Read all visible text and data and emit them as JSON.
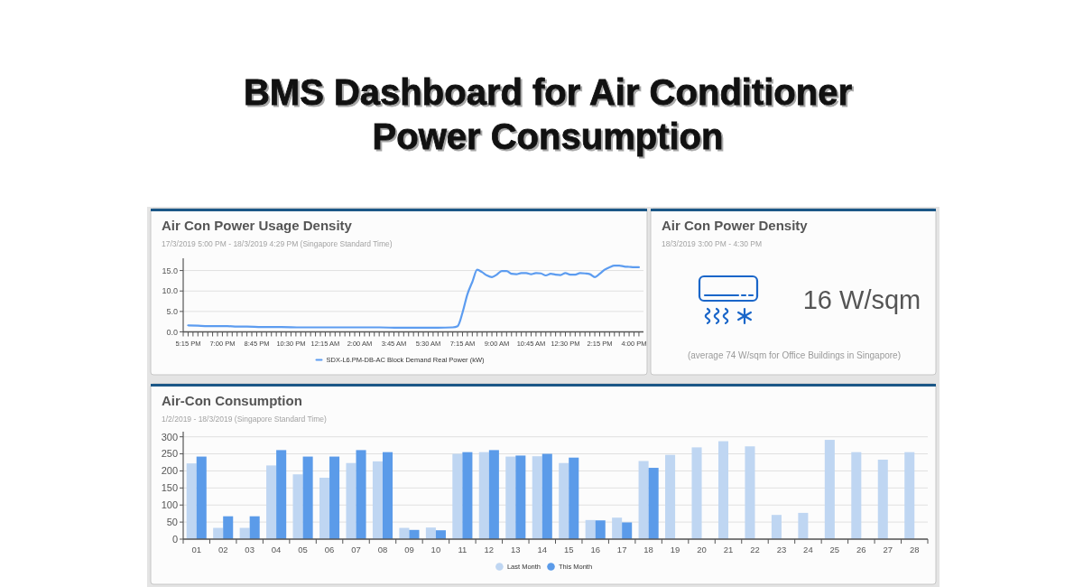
{
  "chart_data": [
    {
      "type": "other",
      "title": "BMS Dashboard for Air Conditioner Power Consumption"
    },
    {
      "type": "line",
      "title": "Air Con Power Usage Density",
      "subtitle": "17/3/2019 5:00 PM - 18/3/2019 4:29 PM (Singapore Standard Time)",
      "x": [
        "2019-03-17T17:15",
        "2019-03-17T17:45",
        "2019-03-17T18:15",
        "2019-03-17T18:45",
        "2019-03-17T19:15",
        "2019-03-17T19:45",
        "2019-03-17T20:15",
        "2019-03-17T21:00",
        "2019-03-17T22:00",
        "2019-03-17T23:00",
        "2019-03-18T00:00",
        "2019-03-18T01:00",
        "2019-03-18T02:00",
        "2019-03-18T03:00",
        "2019-03-18T04:00",
        "2019-03-18T05:00",
        "2019-03-18T06:00",
        "2019-03-18T06:45",
        "2019-03-18T07:00",
        "2019-03-18T07:15",
        "2019-03-18T07:30",
        "2019-03-18T07:45",
        "2019-03-18T08:00",
        "2019-03-18T08:15",
        "2019-03-18T08:30",
        "2019-03-18T08:45",
        "2019-03-18T09:00",
        "2019-03-18T09:15",
        "2019-03-18T09:30",
        "2019-03-18T09:45",
        "2019-03-18T10:00",
        "2019-03-18T10:15",
        "2019-03-18T10:30",
        "2019-03-18T10:45",
        "2019-03-18T11:00",
        "2019-03-18T11:15",
        "2019-03-18T11:30",
        "2019-03-18T11:45",
        "2019-03-18T12:00",
        "2019-03-18T12:15",
        "2019-03-18T12:30",
        "2019-03-18T12:45",
        "2019-03-18T13:00",
        "2019-03-18T13:15",
        "2019-03-18T13:30",
        "2019-03-18T13:45",
        "2019-03-18T14:00",
        "2019-03-18T14:15",
        "2019-03-18T14:30",
        "2019-03-18T14:45",
        "2019-03-18T15:00",
        "2019-03-18T15:15",
        "2019-03-18T15:30",
        "2019-03-18T15:45",
        "2019-03-18T16:00",
        "2019-03-18T16:15"
      ],
      "series": [
        {
          "name": "SDX-L6.PM-DB-AC Block Demand Real Power (kW)",
          "color": "#5c9cf0",
          "values": [
            1.6,
            1.5,
            1.4,
            1.4,
            1.4,
            1.3,
            1.3,
            1.2,
            1.2,
            1.1,
            1.1,
            1.1,
            1.1,
            1.1,
            1.0,
            1.0,
            1.0,
            1.1,
            1.4,
            4.7,
            9.2,
            12.2,
            15.2,
            14.6,
            13.8,
            13.4,
            14.0,
            14.9,
            14.9,
            14.2,
            14.1,
            14.4,
            14.4,
            14.1,
            14.4,
            14.3,
            13.8,
            14.2,
            14.0,
            13.9,
            14.4,
            14.0,
            14.0,
            14.4,
            14.3,
            14.1,
            13.4,
            14.2,
            15.2,
            15.8,
            16.2,
            16.2,
            16.0,
            15.9,
            15.8,
            15.8
          ]
        }
      ],
      "xlim": [
        "2019-03-17T17:00",
        "2019-03-18T16:29"
      ],
      "xticks": [
        {
          "value": "2019-03-17T17:00",
          "label": null
        },
        {
          "value": "2019-03-17T17:15",
          "label": "5:15 PM"
        },
        {
          "value": "2019-03-17T17:30",
          "label": null
        },
        {
          "value": "2019-03-17T17:45",
          "label": null
        },
        {
          "value": "2019-03-17T18:00",
          "label": null
        },
        {
          "value": "2019-03-17T18:15",
          "label": null
        },
        {
          "value": "2019-03-17T18:30",
          "label": null
        },
        {
          "value": "2019-03-17T18:45",
          "label": null
        },
        {
          "value": "2019-03-17T19:00",
          "label": "7:00 PM"
        },
        {
          "value": "2019-03-17T19:15",
          "label": null
        },
        {
          "value": "2019-03-17T19:30",
          "label": null
        },
        {
          "value": "2019-03-17T19:45",
          "label": null
        },
        {
          "value": "2019-03-17T20:00",
          "label": null
        },
        {
          "value": "2019-03-17T20:15",
          "label": null
        },
        {
          "value": "2019-03-17T20:30",
          "label": null
        },
        {
          "value": "2019-03-17T20:45",
          "label": "8:45 PM"
        },
        {
          "value": "2019-03-17T21:00",
          "label": null
        },
        {
          "value": "2019-03-17T21:15",
          "label": null
        },
        {
          "value": "2019-03-17T21:30",
          "label": null
        },
        {
          "value": "2019-03-17T21:45",
          "label": null
        },
        {
          "value": "2019-03-17T22:00",
          "label": null
        },
        {
          "value": "2019-03-17T22:15",
          "label": null
        },
        {
          "value": "2019-03-17T22:30",
          "label": "10:30 PM"
        },
        {
          "value": "2019-03-17T22:45",
          "label": null
        },
        {
          "value": "2019-03-17T23:00",
          "label": null
        },
        {
          "value": "2019-03-17T23:15",
          "label": null
        },
        {
          "value": "2019-03-17T23:30",
          "label": null
        },
        {
          "value": "2019-03-17T23:45",
          "label": null
        },
        {
          "value": "2019-03-18T00:00",
          "label": null
        },
        {
          "value": "2019-03-18T00:15",
          "label": "12:15 AM"
        },
        {
          "value": "2019-03-18T00:30",
          "label": null
        },
        {
          "value": "2019-03-18T00:45",
          "label": null
        },
        {
          "value": "2019-03-18T01:00",
          "label": null
        },
        {
          "value": "2019-03-18T01:15",
          "label": null
        },
        {
          "value": "2019-03-18T01:30",
          "label": null
        },
        {
          "value": "2019-03-18T01:45",
          "label": null
        },
        {
          "value": "2019-03-18T02:00",
          "label": "2:00 AM"
        },
        {
          "value": "2019-03-18T02:15",
          "label": null
        },
        {
          "value": "2019-03-18T02:30",
          "label": null
        },
        {
          "value": "2019-03-18T02:45",
          "label": null
        },
        {
          "value": "2019-03-18T03:00",
          "label": null
        },
        {
          "value": "2019-03-18T03:15",
          "label": null
        },
        {
          "value": "2019-03-18T03:30",
          "label": null
        },
        {
          "value": "2019-03-18T03:45",
          "label": "3:45 AM"
        },
        {
          "value": "2019-03-18T04:00",
          "label": null
        },
        {
          "value": "2019-03-18T04:15",
          "label": null
        },
        {
          "value": "2019-03-18T04:30",
          "label": null
        },
        {
          "value": "2019-03-18T04:45",
          "label": null
        },
        {
          "value": "2019-03-18T05:00",
          "label": null
        },
        {
          "value": "2019-03-18T05:15",
          "label": null
        },
        {
          "value": "2019-03-18T05:30",
          "label": "5:30 AM"
        },
        {
          "value": "2019-03-18T05:45",
          "label": null
        },
        {
          "value": "2019-03-18T06:00",
          "label": null
        },
        {
          "value": "2019-03-18T06:15",
          "label": null
        },
        {
          "value": "2019-03-18T06:30",
          "label": null
        },
        {
          "value": "2019-03-18T06:45",
          "label": null
        },
        {
          "value": "2019-03-18T07:00",
          "label": null
        },
        {
          "value": "2019-03-18T07:15",
          "label": "7:15 AM"
        },
        {
          "value": "2019-03-18T07:30",
          "label": null
        },
        {
          "value": "2019-03-18T07:45",
          "label": null
        },
        {
          "value": "2019-03-18T08:00",
          "label": null
        },
        {
          "value": "2019-03-18T08:15",
          "label": null
        },
        {
          "value": "2019-03-18T08:30",
          "label": null
        },
        {
          "value": "2019-03-18T08:45",
          "label": null
        },
        {
          "value": "2019-03-18T09:00",
          "label": "9:00 AM"
        },
        {
          "value": "2019-03-18T09:15",
          "label": null
        },
        {
          "value": "2019-03-18T09:30",
          "label": null
        },
        {
          "value": "2019-03-18T09:45",
          "label": null
        },
        {
          "value": "2019-03-18T10:00",
          "label": null
        },
        {
          "value": "2019-03-18T10:15",
          "label": null
        },
        {
          "value": "2019-03-18T10:30",
          "label": null
        },
        {
          "value": "2019-03-18T10:45",
          "label": "10:45 AM"
        },
        {
          "value": "2019-03-18T11:00",
          "label": null
        },
        {
          "value": "2019-03-18T11:15",
          "label": null
        },
        {
          "value": "2019-03-18T11:30",
          "label": null
        },
        {
          "value": "2019-03-18T11:45",
          "label": null
        },
        {
          "value": "2019-03-18T12:00",
          "label": null
        },
        {
          "value": "2019-03-18T12:15",
          "label": null
        },
        {
          "value": "2019-03-18T12:30",
          "label": "12:30 PM"
        },
        {
          "value": "2019-03-18T12:45",
          "label": null
        },
        {
          "value": "2019-03-18T13:00",
          "label": null
        },
        {
          "value": "2019-03-18T13:15",
          "label": null
        },
        {
          "value": "2019-03-18T13:30",
          "label": null
        },
        {
          "value": "2019-03-18T13:45",
          "label": null
        },
        {
          "value": "2019-03-18T14:00",
          "label": null
        },
        {
          "value": "2019-03-18T14:15",
          "label": "2:15 PM"
        },
        {
          "value": "2019-03-18T14:30",
          "label": null
        },
        {
          "value": "2019-03-18T14:45",
          "label": null
        },
        {
          "value": "2019-03-18T15:00",
          "label": null
        },
        {
          "value": "2019-03-18T15:15",
          "label": null
        },
        {
          "value": "2019-03-18T15:30",
          "label": null
        },
        {
          "value": "2019-03-18T15:45",
          "label": null
        },
        {
          "value": "2019-03-18T16:00",
          "label": "4:00 PM"
        },
        {
          "value": "2019-03-18T16:15",
          "label": null
        }
      ],
      "ylim": [
        0,
        18
      ],
      "yticks": [
        {
          "value": 0,
          "label": "0.0"
        },
        {
          "value": 5,
          "label": "5.0"
        },
        {
          "value": 10,
          "label": "10.0"
        },
        {
          "value": 15,
          "label": "15.0"
        }
      ],
      "grid": "y",
      "legend": "bottom"
    },
    {
      "type": "other",
      "title": "Air Con Power Density",
      "subtitle": "18/3/2019 3:00 PM - 4:30 PM",
      "annotations": [
        "16 W/sqm",
        "(average 74 W/sqm for Office Buildings in Singapore)"
      ]
    },
    {
      "type": "bar",
      "title": "Air-Con Consumption",
      "subtitle": "1/2/2019 - 18/3/2019 (Singapore Standard Time)",
      "categories": [
        "01",
        "02",
        "03",
        "04",
        "05",
        "06",
        "07",
        "08",
        "09",
        "10",
        "11",
        "12",
        "13",
        "14",
        "15",
        "16",
        "17",
        "18",
        "19",
        "20",
        "21",
        "22",
        "23",
        "24",
        "25",
        "26",
        "27",
        "28"
      ],
      "series": [
        {
          "name": "Last Month",
          "color": "#bfd6f2",
          "values": [
            222,
            33,
            33,
            216,
            190,
            180,
            223,
            228,
            33,
            34,
            250,
            255,
            242,
            243,
            223,
            56,
            63,
            229,
            247,
            269,
            287,
            272,
            71,
            77,
            291,
            255,
            233,
            255
          ]
        },
        {
          "name": "This Month",
          "color": "#5b9be9",
          "values": [
            242,
            67,
            67,
            261,
            242,
            242,
            261,
            255,
            27,
            26,
            255,
            261,
            245,
            250,
            239,
            55,
            49,
            209,
            null,
            null,
            null,
            null,
            null,
            null,
            null,
            null,
            null,
            null
          ]
        }
      ],
      "ylim": [
        0,
        315
      ],
      "yticks": [
        0,
        50,
        100,
        150,
        200,
        250,
        300
      ],
      "grid": "y",
      "legend": "bottom"
    }
  ]
}
